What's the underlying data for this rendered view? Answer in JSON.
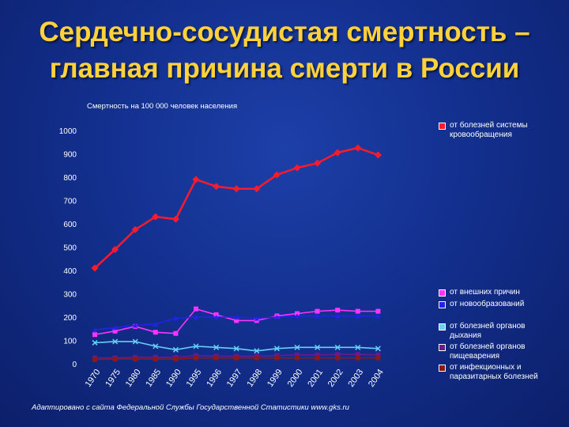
{
  "slide": {
    "title_line1": "Сердечно-сосудистая смертность –",
    "title_line2": "главная причина смерти в России",
    "source": "Адаптировано с сайта Федеральной Службы Государственной Статистики www.gks.ru"
  },
  "chart_data": {
    "type": "line",
    "title": "",
    "subtitle": "Смертность на 100 000 человек населения",
    "xlabel": "",
    "ylabel": "",
    "ylim": [
      0,
      1000
    ],
    "yticks": [
      "0",
      "100",
      "200",
      "300",
      "400",
      "500",
      "600",
      "700",
      "800",
      "900",
      "1000"
    ],
    "categories": [
      "1970",
      "1975",
      "1980",
      "1985",
      "1990",
      "1995",
      "1996",
      "1997",
      "1998",
      "1999",
      "2000",
      "2001",
      "2002",
      "2003",
      "2004"
    ],
    "legend_placement": "right",
    "series": [
      {
        "name": "от болезней системы кровообращения",
        "color": "#ff1a2a",
        "marker": "diamond",
        "values": [
          410,
          490,
          575,
          630,
          620,
          790,
          760,
          750,
          750,
          810,
          840,
          860,
          905,
          925,
          895
        ]
      },
      {
        "name": "от внешних причин",
        "color": "#ff33ff",
        "marker": "square",
        "values": [
          125,
          140,
          160,
          135,
          130,
          235,
          210,
          185,
          185,
          205,
          215,
          225,
          230,
          225,
          225
        ]
      },
      {
        "name": "от новообразований",
        "color": "#2222ee",
        "marker": "triangle",
        "values": [
          145,
          155,
          165,
          170,
          195,
          200,
          200,
          200,
          195,
          200,
          205,
          205,
          205,
          205,
          205
        ]
      },
      {
        "name": "от болезней органов дыхания",
        "color": "#66d0f5",
        "marker": "x",
        "values": [
          90,
          95,
          95,
          75,
          60,
          75,
          70,
          65,
          55,
          65,
          70,
          70,
          70,
          70,
          65
        ]
      },
      {
        "name": "от болезней органов пищеварения",
        "color": "#6a1a8a",
        "marker": "square",
        "values": [
          25,
          25,
          28,
          28,
          28,
          35,
          33,
          32,
          33,
          35,
          38,
          38,
          40,
          40,
          38
        ]
      },
      {
        "name": "от инфекционных и паразитарных болезней",
        "color": "#8a1a1a",
        "marker": "square",
        "values": [
          18,
          20,
          20,
          20,
          20,
          25,
          25,
          25,
          25,
          25,
          25,
          25,
          25,
          25,
          25
        ]
      }
    ]
  }
}
